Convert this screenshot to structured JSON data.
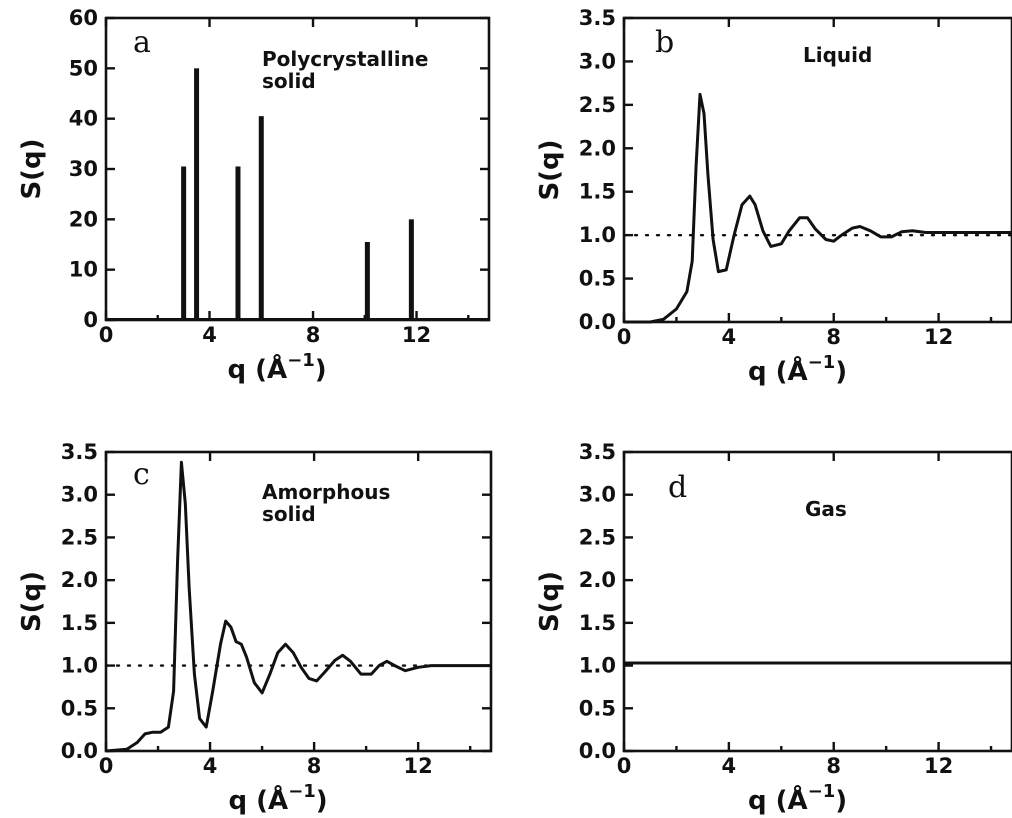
{
  "chart_data": [
    {
      "type": "bar",
      "panel": "a",
      "annotation": [
        "Polycrystalline",
        "solid"
      ],
      "xlabel": "q",
      "xlabel_unit": "(Å",
      "xlabel_unit_sup": "−1",
      "xlabel_unit_close": ")",
      "ylabel": "S(q)",
      "xlim": [
        0,
        14.8
      ],
      "ylim": [
        0,
        60
      ],
      "xticks": [
        0,
        4,
        8,
        12
      ],
      "yticks": [
        0,
        10,
        20,
        30,
        40,
        50,
        60
      ],
      "x": [
        3.0,
        3.5,
        5.1,
        6.0,
        10.1,
        11.8
      ],
      "values": [
        30.5,
        50,
        30.5,
        40.5,
        15.5,
        20
      ]
    },
    {
      "type": "line",
      "panel": "b",
      "annotation": [
        "Liquid"
      ],
      "xlabel": "q",
      "xlabel_unit": "(Å",
      "xlabel_unit_sup": "−1",
      "xlabel_unit_close": ")",
      "ylabel": "S(q)",
      "xlim": [
        0,
        14.8
      ],
      "ylim": [
        0,
        3.5
      ],
      "xticks": [
        0,
        4,
        8,
        12
      ],
      "yticks": [
        0.0,
        0.5,
        1.0,
        1.5,
        2.0,
        2.5,
        3.0,
        3.5
      ],
      "reference_line": 1.0,
      "x": [
        0,
        1.0,
        1.5,
        2.0,
        2.4,
        2.6,
        2.75,
        2.9,
        3.05,
        3.2,
        3.4,
        3.6,
        3.9,
        4.2,
        4.5,
        4.8,
        5.0,
        5.3,
        5.6,
        6.0,
        6.3,
        6.7,
        7.0,
        7.3,
        7.7,
        8.0,
        8.3,
        8.7,
        9.0,
        9.4,
        9.8,
        10.2,
        10.6,
        11.0,
        11.5,
        12.0,
        14.8
      ],
      "y": [
        0,
        0,
        0.03,
        0.15,
        0.35,
        0.7,
        1.8,
        2.62,
        2.4,
        1.7,
        0.95,
        0.58,
        0.6,
        1.0,
        1.35,
        1.45,
        1.35,
        1.05,
        0.87,
        0.9,
        1.05,
        1.2,
        1.2,
        1.07,
        0.95,
        0.93,
        1.0,
        1.08,
        1.1,
        1.05,
        0.98,
        0.98,
        1.04,
        1.05,
        1.03,
        1.03,
        1.03
      ]
    },
    {
      "type": "line",
      "panel": "c",
      "annotation": [
        "Amorphous",
        "solid"
      ],
      "xlabel": "q",
      "xlabel_unit": "(Å",
      "xlabel_unit_sup": "−1",
      "xlabel_unit_close": ")",
      "ylabel": "S(q)",
      "xlim": [
        0,
        14.8
      ],
      "ylim": [
        0,
        3.5
      ],
      "xticks": [
        0,
        4,
        8,
        12
      ],
      "yticks": [
        0.0,
        0.5,
        1.0,
        1.5,
        2.0,
        2.5,
        3.0,
        3.5
      ],
      "reference_line": 1.0,
      "x": [
        0,
        0.8,
        1.2,
        1.5,
        1.8,
        2.1,
        2.4,
        2.6,
        2.75,
        2.9,
        3.05,
        3.2,
        3.4,
        3.6,
        3.85,
        4.1,
        4.4,
        4.6,
        4.8,
        5.0,
        5.2,
        5.4,
        5.7,
        6.0,
        6.3,
        6.6,
        6.9,
        7.2,
        7.5,
        7.8,
        8.1,
        8.4,
        8.8,
        9.1,
        9.4,
        9.8,
        10.2,
        10.5,
        10.8,
        11.1,
        11.5,
        12.0,
        12.5,
        14.8
      ],
      "y": [
        0,
        0.02,
        0.1,
        0.2,
        0.22,
        0.22,
        0.28,
        0.7,
        2.2,
        3.38,
        2.9,
        1.9,
        0.9,
        0.38,
        0.28,
        0.7,
        1.25,
        1.52,
        1.45,
        1.28,
        1.25,
        1.1,
        0.8,
        0.68,
        0.9,
        1.15,
        1.25,
        1.15,
        0.98,
        0.85,
        0.82,
        0.92,
        1.06,
        1.12,
        1.05,
        0.9,
        0.9,
        1.0,
        1.05,
        1.0,
        0.94,
        0.98,
        1.0,
        1.0
      ]
    },
    {
      "type": "line",
      "panel": "d",
      "annotation": [
        "Gas"
      ],
      "xlabel": "q",
      "xlabel_unit": "(Å",
      "xlabel_unit_sup": "−1",
      "xlabel_unit_close": ")",
      "ylabel": "S(q)",
      "xlim": [
        0,
        14.8
      ],
      "ylim": [
        0,
        3.5
      ],
      "xticks": [
        0,
        4,
        8,
        12
      ],
      "yticks": [
        0.0,
        0.5,
        1.0,
        1.5,
        2.0,
        2.5,
        3.0,
        3.5
      ],
      "x": [
        0,
        14.8
      ],
      "y": [
        1.03,
        1.03
      ]
    }
  ]
}
